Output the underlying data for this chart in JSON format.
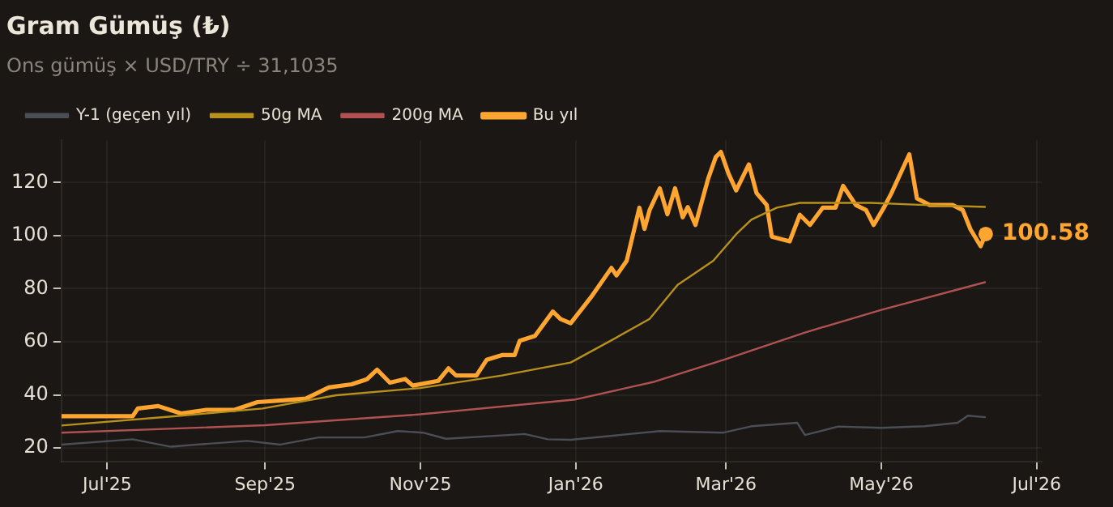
{
  "chart_data": {
    "type": "line",
    "title": "Gram Gümüş (₺)",
    "subtitle": "Ons gümüş × USD/TRY ÷ 31,1035",
    "xlim": [
      "2025-06-13",
      "2026-07-03"
    ],
    "xticks": [
      {
        "value": "2025-07-01",
        "label": "Jul'25"
      },
      {
        "value": "2025-09-01",
        "label": "Sep'25"
      },
      {
        "value": "2025-11-01",
        "label": "Nov'25"
      },
      {
        "value": "2026-01-01",
        "label": "Jan'26"
      },
      {
        "value": "2026-03-01",
        "label": "Mar'26"
      },
      {
        "value": "2026-05-01",
        "label": "May'26"
      },
      {
        "value": "2026-07-01",
        "label": "Jul'26"
      }
    ],
    "ylim": [
      15,
      136
    ],
    "yticks": [
      20,
      40,
      60,
      80,
      100,
      120
    ],
    "grid": true,
    "legend": "top left",
    "marker": "none",
    "line_style": "solid",
    "series": [
      {
        "name": "Y-1 (geçen yıl)",
        "color": "#4a4e56",
        "x": [
          "2025-06-13",
          "2025-07-11",
          "2025-07-26",
          "2025-08-05",
          "2025-08-25",
          "2025-09-07",
          "2025-09-22",
          "2025-10-10",
          "2025-10-23",
          "2025-11-02",
          "2025-11-11",
          "2025-12-12",
          "2025-12-21",
          "2025-12-30",
          "2026-02-03",
          "2026-02-28",
          "2026-03-11",
          "2026-03-29",
          "2026-04-01",
          "2026-04-14",
          "2026-05-01",
          "2026-05-18",
          "2026-05-31",
          "2026-06-04",
          "2026-06-11"
        ],
        "values": [
          21.3,
          23.3,
          20.5,
          21.3,
          22.7,
          21.3,
          24,
          24,
          26.4,
          25.8,
          23.5,
          25.3,
          23.3,
          23.1,
          26.4,
          25.8,
          28.2,
          29.5,
          24.9,
          28.1,
          27.6,
          28.2,
          29.5,
          32.2,
          31.6
        ]
      },
      {
        "name": "50g MA",
        "color": "#b8901c",
        "x": [
          "2025-06-13",
          "2025-07-30",
          "2025-08-31",
          "2025-09-29",
          "2025-11-01",
          "2025-12-03",
          "2025-12-30",
          "2026-01-13",
          "2026-01-30",
          "2026-02-10",
          "2026-02-24",
          "2026-03-05",
          "2026-03-11",
          "2026-03-21",
          "2026-03-30",
          "2026-04-27",
          "2026-05-18",
          "2026-06-11"
        ],
        "values": [
          28.5,
          32.2,
          34.9,
          39.9,
          42.6,
          47.3,
          52.2,
          59.5,
          68.6,
          81.4,
          90.5,
          100.5,
          106,
          110.5,
          112.3,
          112.3,
          111.5,
          110.8
        ]
      },
      {
        "name": "200g MA",
        "color": "#b05252",
        "x": [
          "2025-06-13",
          "2025-09-01",
          "2025-11-01",
          "2026-01-01",
          "2026-02-01",
          "2026-03-01",
          "2026-04-01",
          "2026-05-01",
          "2026-06-11"
        ],
        "values": [
          25.8,
          28.6,
          32.7,
          38.3,
          45,
          53.5,
          63.5,
          72,
          82.5
        ]
      },
      {
        "name": "Bu yıl",
        "color": "#ffa530",
        "x": [
          "2025-06-13",
          "2025-07-11",
          "2025-07-13",
          "2025-07-21",
          "2025-07-30",
          "2025-08-09",
          "2025-08-20",
          "2025-08-29",
          "2025-09-09",
          "2025-09-17",
          "2025-09-26",
          "2025-10-05",
          "2025-10-11",
          "2025-10-15",
          "2025-10-20",
          "2025-10-26",
          "2025-10-29",
          "2025-11-08",
          "2025-11-12",
          "2025-11-15",
          "2025-11-23",
          "2025-11-27",
          "2025-12-03",
          "2025-12-08",
          "2025-12-10",
          "2025-12-16",
          "2025-12-23",
          "2025-12-26",
          "2025-12-30",
          "2026-01-07",
          "2026-01-15",
          "2026-01-17",
          "2026-01-21",
          "2026-01-26",
          "2026-01-28",
          "2026-01-30",
          "2026-02-03",
          "2026-02-06",
          "2026-02-09",
          "2026-02-12",
          "2026-02-14",
          "2026-02-17",
          "2026-02-22",
          "2026-02-25",
          "2026-02-27",
          "2026-03-02",
          "2026-03-05",
          "2026-03-10",
          "2026-03-13",
          "2026-03-17",
          "2026-03-19",
          "2026-03-26",
          "2026-03-30",
          "2026-04-03",
          "2026-04-08",
          "2026-04-13",
          "2026-04-16",
          "2026-04-21",
          "2026-04-25",
          "2026-04-28",
          "2026-05-02",
          "2026-05-05",
          "2026-05-12",
          "2026-05-15",
          "2026-05-20",
          "2026-05-29",
          "2026-06-02",
          "2026-06-05",
          "2026-06-09",
          "2026-06-11"
        ],
        "values": [
          32,
          32,
          34.9,
          35.8,
          33,
          34.4,
          34.4,
          37.3,
          38,
          38.6,
          42.8,
          44,
          45.9,
          49.5,
          44.6,
          46,
          43.5,
          45.3,
          50,
          47.3,
          47.3,
          53.2,
          55,
          55,
          60.4,
          62.2,
          71.4,
          68.6,
          67,
          76.8,
          87.8,
          85,
          90.5,
          110.5,
          102.5,
          109.6,
          117.8,
          108,
          117.8,
          106.9,
          110.7,
          104,
          121.4,
          129.6,
          131.5,
          123.3,
          117,
          126.8,
          116,
          111.5,
          99.6,
          97.8,
          107.8,
          104,
          110.5,
          110.5,
          118.7,
          111.5,
          109.6,
          104,
          110.5,
          116,
          130.6,
          114,
          111.5,
          111.5,
          109.6,
          102.4,
          96,
          100.58
        ]
      }
    ],
    "annotations": [
      {
        "text": "100.58",
        "x": "2026-06-11",
        "y": 100.58
      }
    ]
  }
}
